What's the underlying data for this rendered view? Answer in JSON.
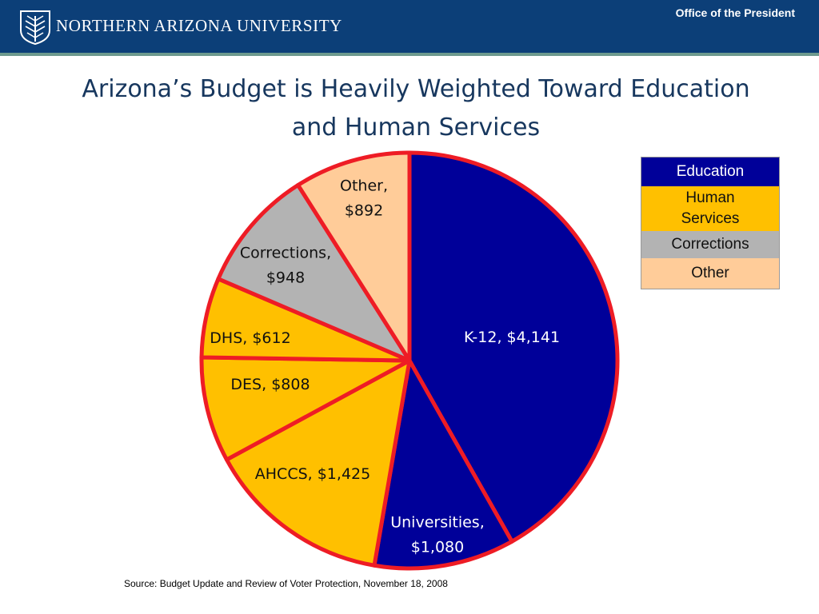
{
  "header": {
    "university_name": "NORTHERN ARIZONA UNIVERSITY",
    "office": "Office of the President",
    "logo_icon": "nau-pine-logo-icon",
    "background_color": "#0c3f78",
    "rule_color": "#6d9a8e"
  },
  "slide": {
    "title_line1": "Arizona’s Budget is Heavily Weighted Toward Education",
    "title_line2": "and Human Services",
    "source": "Source:  Budget Update and Review of Voter Protection, November 18, 2008"
  },
  "chart_data": {
    "type": "pie",
    "start": "12 o'clock",
    "direction": "clockwise",
    "slice_border_color": "#ee1c25",
    "slices": [
      {
        "label_lines": [
          "K-12, $4,141"
        ],
        "value": 4141,
        "group": "Education",
        "color": "#000099",
        "text_color": "#ffffff"
      },
      {
        "label_lines": [
          "Universities,",
          "$1,080"
        ],
        "value": 1080,
        "group": "Education",
        "color": "#000099",
        "text_color": "#ffffff"
      },
      {
        "label_lines": [
          "AHCCS, $1,425"
        ],
        "value": 1425,
        "group": "Human Services",
        "color": "#ffc000",
        "text_color": "#111111"
      },
      {
        "label_lines": [
          "DES, $808"
        ],
        "value": 808,
        "group": "Human Services",
        "color": "#ffc000",
        "text_color": "#111111"
      },
      {
        "label_lines": [
          "DHS, $612"
        ],
        "value": 612,
        "group": "Human Services",
        "color": "#ffc000",
        "text_color": "#111111"
      },
      {
        "label_lines": [
          "Corrections,",
          "$948"
        ],
        "value": 948,
        "group": "Corrections",
        "color": "#b3b3b3",
        "text_color": "#111111"
      },
      {
        "label_lines": [
          "Other,",
          "$892"
        ],
        "value": 892,
        "group": "Other",
        "color": "#ffcc99",
        "text_color": "#111111"
      }
    ],
    "legend": {
      "placement": "top-right",
      "items": [
        {
          "label_lines": [
            "Education"
          ],
          "color": "#000099",
          "text_color": "#ffffff"
        },
        {
          "label_lines": [
            "Human",
            "Services"
          ],
          "color": "#ffc000",
          "text_color": "#111111"
        },
        {
          "label_lines": [
            "Corrections"
          ],
          "color": "#b3b3b3",
          "text_color": "#111111"
        },
        {
          "label_lines": [
            "Other"
          ],
          "color": "#ffcc99",
          "text_color": "#111111"
        }
      ]
    }
  }
}
